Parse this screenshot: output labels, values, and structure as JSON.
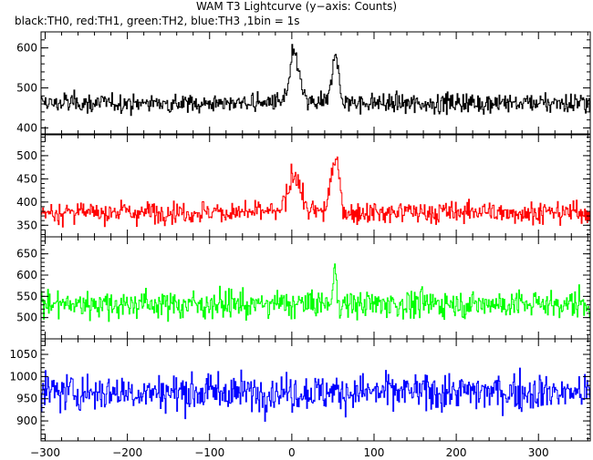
{
  "chart_data": {
    "type": "line",
    "title": "WAM T3 Lightcurve (y−axis: Counts)",
    "subtitle": "black:TH0, red:TH1, green:TH2, blue:TH3 ,1bin = 1s",
    "xlim": [
      -305,
      363
    ],
    "x_ticks": [
      -300,
      -200,
      -100,
      0,
      100,
      200,
      300
    ],
    "x_tick_labels": [
      "−300",
      "−200",
      "−100",
      "0",
      "100",
      "200",
      "300"
    ],
    "bin_seconds": 1,
    "panels": [
      {
        "series": "TH0",
        "color": "#000000",
        "ylim": [
          385,
          640
        ],
        "y_ticks": [
          400,
          500,
          600
        ],
        "y_tick_labels": [
          "400",
          "500",
          "600"
        ],
        "baseline": 462,
        "noise": 20,
        "peaks": [
          {
            "x": 3,
            "height": 110,
            "width": 6
          },
          {
            "x": 52,
            "height": 120,
            "width": 4
          }
        ]
      },
      {
        "series": "TH1",
        "color": "#ff0000",
        "ylim": [
          325,
          545
        ],
        "y_ticks": [
          350,
          400,
          450,
          500
        ],
        "y_tick_labels": [
          "350",
          "400",
          "450",
          "500"
        ],
        "baseline": 378,
        "noise": 20,
        "peaks": [
          {
            "x": 3,
            "height": 85,
            "width": 7
          },
          {
            "x": 52,
            "height": 115,
            "width": 5
          }
        ]
      },
      {
        "series": "TH2",
        "color": "#00ff00",
        "ylim": [
          450,
          690
        ],
        "y_ticks": [
          500,
          550,
          600,
          650
        ],
        "y_tick_labels": [
          "500",
          "550",
          "600",
          "650"
        ],
        "baseline": 532,
        "noise": 27,
        "peaks": [
          {
            "x": 52,
            "height": 80,
            "width": 2
          }
        ]
      },
      {
        "series": "TH3",
        "color": "#0000ff",
        "ylim": [
          855,
          1085
        ],
        "y_ticks": [
          900,
          950,
          1000,
          1050
        ],
        "y_tick_labels": [
          "900",
          "950",
          "1000",
          "1050"
        ],
        "baseline": 965,
        "noise": 35,
        "peaks": []
      }
    ]
  }
}
